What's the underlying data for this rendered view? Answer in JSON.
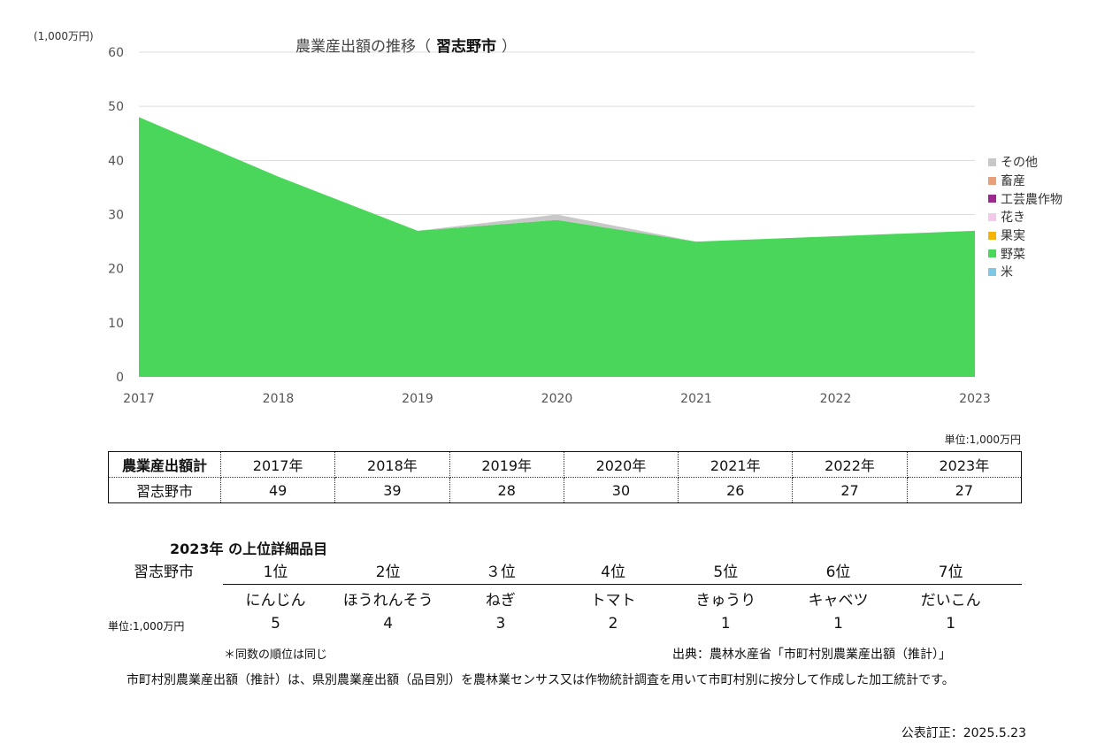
{
  "chart_data": {
    "type": "area",
    "title_prefix": "農業産出額の推移（",
    "title_pref": "習志野市",
    "title_suffix": "）",
    "unit_label": "(1,000万円)",
    "x": [
      "2017",
      "2018",
      "2019",
      "2020",
      "2021",
      "2022",
      "2023"
    ],
    "ylim": [
      0,
      60
    ],
    "yticks": [
      "0",
      "10",
      "20",
      "30",
      "40",
      "50",
      "60"
    ],
    "grid": true,
    "legend_position": "right",
    "stack_order": [
      "米",
      "野菜",
      "果実",
      "花き",
      "工芸農作物",
      "畜産",
      "その他"
    ],
    "series": [
      {
        "name": "その他",
        "color": "#c8c8c8",
        "values": [
          0,
          0,
          0,
          1,
          0,
          0,
          0
        ]
      },
      {
        "name": "畜産",
        "color": "#e8a07a",
        "values": [
          0,
          0,
          0,
          0,
          0,
          0,
          0
        ]
      },
      {
        "name": "工芸農作物",
        "color": "#9b2a8f",
        "values": [
          0,
          0,
          0,
          0,
          0,
          0,
          0
        ]
      },
      {
        "name": "花き",
        "color": "#f3c8ea",
        "values": [
          0,
          0,
          0,
          0,
          0,
          0,
          0
        ]
      },
      {
        "name": "果実",
        "color": "#f5b400",
        "values": [
          0,
          0,
          0,
          0,
          0,
          0,
          0
        ]
      },
      {
        "name": "野菜",
        "color": "#4ad65a",
        "values": [
          48,
          37,
          27,
          29,
          25,
          26,
          27
        ]
      },
      {
        "name": "米",
        "color": "#7ec8e3",
        "values": [
          0,
          0,
          0,
          0,
          0,
          0,
          0
        ]
      }
    ]
  },
  "unit_right": "単位:1,000万円",
  "totals_table": {
    "header_label": "農業産出額計",
    "years": [
      "2017年",
      "2018年",
      "2019年",
      "2020年",
      "2021年",
      "2022年",
      "2023年"
    ],
    "row_label": "習志野市",
    "values": [
      "49",
      "39",
      "28",
      "30",
      "26",
      "27",
      "27"
    ]
  },
  "ranking": {
    "title": "2023年 の上位詳細品目",
    "row_label": "習志野市",
    "ranks": [
      "1位",
      "2位",
      "３位",
      "4位",
      "5位",
      "6位",
      "7位"
    ],
    "items": [
      "にんじん",
      "ほうれんそう",
      "ねぎ",
      "トマト",
      "きゅうり",
      "キャベツ",
      "だいこん"
    ],
    "unit": "単位:1,000万円",
    "values": [
      "5",
      "4",
      "3",
      "2",
      "1",
      "1",
      "1"
    ]
  },
  "note": "＊同数の順位は同じ",
  "source": "出典：農林水産省「市町村別農業産出額（推計）」",
  "description": "市町村別農業産出額（推計）は、県別農業産出額（品目別）を農林業センサス又は作物統計調査を用いて市町村別に按分して作成した加工統計です。",
  "published": "公表訂正：2025.5.23"
}
